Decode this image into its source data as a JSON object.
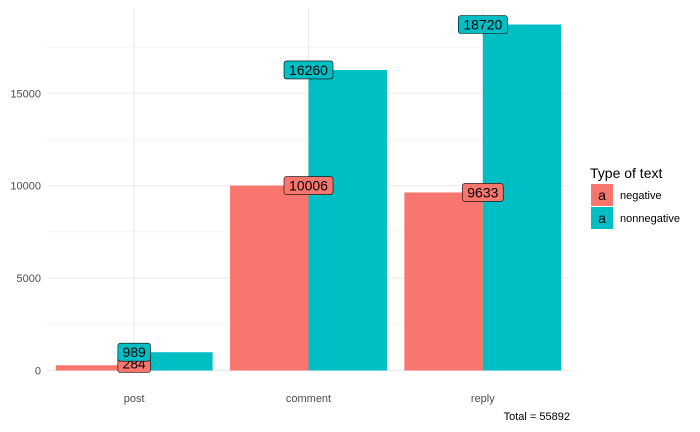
{
  "chart_data": {
    "type": "bar",
    "categories": [
      "post",
      "comment",
      "reply"
    ],
    "series": [
      {
        "name": "negative",
        "values": [
          284,
          10006,
          9633
        ],
        "color": "#F8766D"
      },
      {
        "name": "nonnegative",
        "values": [
          989,
          16260,
          18720
        ],
        "color": "#00BFC4"
      }
    ],
    "ylim": [
      0,
      18720
    ],
    "yticks": [
      0,
      5000,
      10000,
      15000
    ],
    "ytick_labels": [
      "0",
      "5000",
      "10000",
      "15000"
    ],
    "grid": true,
    "legend": {
      "title": "Type of text",
      "placement": "right",
      "key_glyph": "a"
    },
    "caption": "Total =  55892"
  }
}
